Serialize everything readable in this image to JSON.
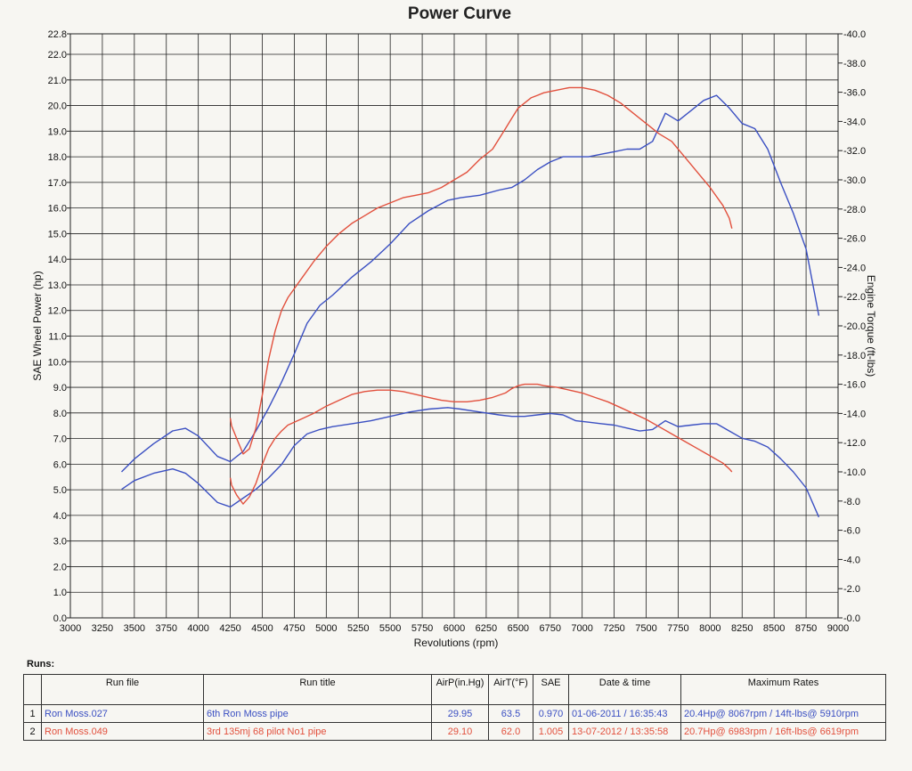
{
  "chart_data": {
    "type": "line",
    "title": "Power Curve",
    "xlabel": "Revolutions (rpm)",
    "ylabel_left": "SAE Wheel Power (hp)",
    "ylabel_right": "Engine Torque (ft-lbs)",
    "xlim": [
      3000,
      9000
    ],
    "ylim_left": [
      0.0,
      22.8
    ],
    "ylim_right": [
      0.0,
      40.0
    ],
    "grid": true,
    "x_ticks": [
      "3000",
      "3250",
      "3500",
      "3750",
      "4000",
      "4250",
      "4500",
      "4750",
      "5000",
      "5250",
      "5500",
      "5750",
      "6000",
      "6250",
      "6500",
      "6750",
      "7000",
      "7250",
      "7500",
      "7750",
      "8000",
      "8250",
      "8500",
      "8750",
      "9000"
    ],
    "y_left_ticks": [
      "0.0",
      "1.0",
      "2.0",
      "3.0",
      "4.0",
      "5.0",
      "6.0",
      "7.0",
      "8.0",
      "9.0",
      "10.0",
      "11.0",
      "12.0",
      "13.0",
      "14.0",
      "15.0",
      "16.0",
      "17.0",
      "18.0",
      "19.0",
      "20.0",
      "21.0",
      "22.0",
      "22.8"
    ],
    "y_right_ticks": [
      "0.0",
      "2.0",
      "4.0",
      "6.0",
      "8.0",
      "10.0",
      "12.0",
      "14.0",
      "16.0",
      "18.0",
      "20.0",
      "22.0",
      "24.0",
      "26.0",
      "28.0",
      "30.0",
      "32.0",
      "34.0",
      "36.0",
      "38.0",
      "40.0"
    ],
    "series": [
      {
        "name": "Ron Moss.027",
        "color": "#3a4fc2",
        "axis": "left",
        "x": [
          3400,
          3500,
          3650,
          3800,
          3900,
          4000,
          4150,
          4250,
          4350,
          4450,
          4550,
          4650,
          4750,
          4850,
          4950,
          5050,
          5200,
          5350,
          5500,
          5650,
          5800,
          5950,
          6050,
          6200,
          6350,
          6450,
          6550,
          6650,
          6750,
          6850,
          6950,
          7050,
          7150,
          7250,
          7350,
          7450,
          7550,
          7650,
          7750,
          7850,
          7950,
          8050,
          8150,
          8250,
          8350,
          8450,
          8550,
          8650,
          8750,
          8850
        ],
        "y": [
          5.7,
          6.2,
          6.8,
          7.3,
          7.4,
          7.1,
          6.3,
          6.1,
          6.5,
          7.3,
          8.2,
          9.2,
          10.3,
          11.5,
          12.2,
          12.6,
          13.3,
          13.9,
          14.6,
          15.4,
          15.9,
          16.3,
          16.4,
          16.5,
          16.7,
          16.8,
          17.1,
          17.5,
          17.8,
          18.0,
          18.0,
          18.0,
          18.1,
          18.2,
          18.3,
          18.3,
          18.6,
          19.7,
          19.4,
          19.8,
          20.2,
          20.4,
          19.9,
          19.3,
          19.1,
          18.3,
          17.0,
          15.8,
          14.4,
          11.8
        ]
      },
      {
        "name": "Ron Moss.027",
        "color": "#3a4fc2",
        "axis": "right",
        "x": [
          3400,
          3500,
          3650,
          3800,
          3900,
          4000,
          4150,
          4250,
          4350,
          4450,
          4550,
          4650,
          4750,
          4850,
          4950,
          5050,
          5200,
          5350,
          5500,
          5650,
          5800,
          5950,
          6050,
          6200,
          6350,
          6450,
          6550,
          6650,
          6750,
          6850,
          6950,
          7050,
          7150,
          7250,
          7350,
          7450,
          7550,
          7650,
          7750,
          7850,
          7950,
          8050,
          8150,
          8250,
          8350,
          8450,
          8550,
          8650,
          8750,
          8850
        ],
        "y": [
          8.8,
          9.4,
          9.9,
          10.2,
          9.9,
          9.2,
          7.9,
          7.6,
          8.2,
          8.8,
          9.6,
          10.5,
          11.8,
          12.6,
          12.9,
          13.1,
          13.3,
          13.5,
          13.8,
          14.1,
          14.3,
          14.4,
          14.3,
          14.1,
          13.9,
          13.8,
          13.8,
          13.9,
          14.0,
          13.9,
          13.5,
          13.4,
          13.3,
          13.2,
          13.0,
          12.8,
          12.9,
          13.5,
          13.1,
          13.2,
          13.3,
          13.3,
          12.8,
          12.3,
          12.1,
          11.7,
          10.9,
          10.0,
          8.9,
          6.9
        ]
      },
      {
        "name": "Ron Moss.049",
        "color": "#e2503d",
        "axis": "left",
        "x": [
          4250,
          4260,
          4300,
          4350,
          4400,
          4450,
          4500,
          4550,
          4600,
          4650,
          4700,
          4800,
          4900,
          5000,
          5100,
          5200,
          5300,
          5400,
          5500,
          5600,
          5700,
          5800,
          5900,
          6000,
          6100,
          6200,
          6300,
          6400,
          6450,
          6500,
          6550,
          6600,
          6650,
          6700,
          6800,
          6900,
          7000,
          7100,
          7200,
          7300,
          7400,
          7500,
          7600,
          7700,
          7800,
          7900,
          8000,
          8100,
          8150,
          8170
        ],
        "y": [
          7.8,
          7.5,
          7.0,
          6.4,
          6.6,
          7.4,
          8.7,
          10.1,
          11.2,
          12.0,
          12.5,
          13.2,
          13.9,
          14.5,
          15.0,
          15.4,
          15.7,
          16.0,
          16.2,
          16.4,
          16.5,
          16.6,
          16.8,
          17.1,
          17.4,
          17.9,
          18.3,
          19.1,
          19.5,
          19.9,
          20.1,
          20.3,
          20.4,
          20.5,
          20.6,
          20.7,
          20.7,
          20.6,
          20.4,
          20.1,
          19.7,
          19.3,
          18.9,
          18.6,
          18.0,
          17.4,
          16.8,
          16.1,
          15.6,
          15.2
        ]
      },
      {
        "name": "Ron Moss.049",
        "color": "#e2503d",
        "axis": "right",
        "x": [
          4250,
          4260,
          4300,
          4350,
          4400,
          4450,
          4500,
          4550,
          4600,
          4650,
          4700,
          4800,
          4900,
          5000,
          5100,
          5200,
          5300,
          5400,
          5500,
          5600,
          5700,
          5800,
          5900,
          6000,
          6100,
          6200,
          6300,
          6400,
          6450,
          6500,
          6550,
          6600,
          6650,
          6700,
          6800,
          6900,
          7000,
          7100,
          7200,
          7300,
          7400,
          7500,
          7600,
          7700,
          7800,
          7900,
          8000,
          8100,
          8150,
          8170
        ],
        "y": [
          9.6,
          9.1,
          8.4,
          7.8,
          8.3,
          9.2,
          10.5,
          11.6,
          12.3,
          12.8,
          13.2,
          13.6,
          14.0,
          14.5,
          14.9,
          15.3,
          15.5,
          15.6,
          15.6,
          15.5,
          15.3,
          15.1,
          14.9,
          14.8,
          14.8,
          14.9,
          15.1,
          15.4,
          15.7,
          15.9,
          16.0,
          16.0,
          16.0,
          15.9,
          15.8,
          15.6,
          15.4,
          15.1,
          14.8,
          14.4,
          14.0,
          13.6,
          13.1,
          12.6,
          12.1,
          11.6,
          11.1,
          10.6,
          10.2,
          10.0
        ]
      }
    ]
  },
  "runs": {
    "label": "Runs:",
    "headers": {
      "index": "",
      "file": "Run file",
      "title": "Run title",
      "airp": "AirP(in.Hg)",
      "airt": "AirT(°F)",
      "sae": "SAE",
      "datetime": "Date & time",
      "max": "Maximum Rates"
    },
    "rows": [
      {
        "index": "1",
        "file": "Ron Moss.027",
        "title": "6th Ron Moss pipe",
        "airp": "29.95",
        "airt": "63.5",
        "sae": "0.970",
        "datetime": "01-06-2011 / 16:35:43",
        "max": "20.4Hp@ 8067rpm / 14ft-lbs@ 5910rpm"
      },
      {
        "index": "2",
        "file": "Ron Moss.049",
        "title": "3rd 135mj 68 pilot  No1 pipe",
        "airp": "29.10",
        "airt": "62.0",
        "sae": "1.005",
        "datetime": "13-07-2012 / 13:35:58",
        "max": "20.7Hp@ 6983rpm / 16ft-lbs@ 6619rpm"
      }
    ]
  }
}
